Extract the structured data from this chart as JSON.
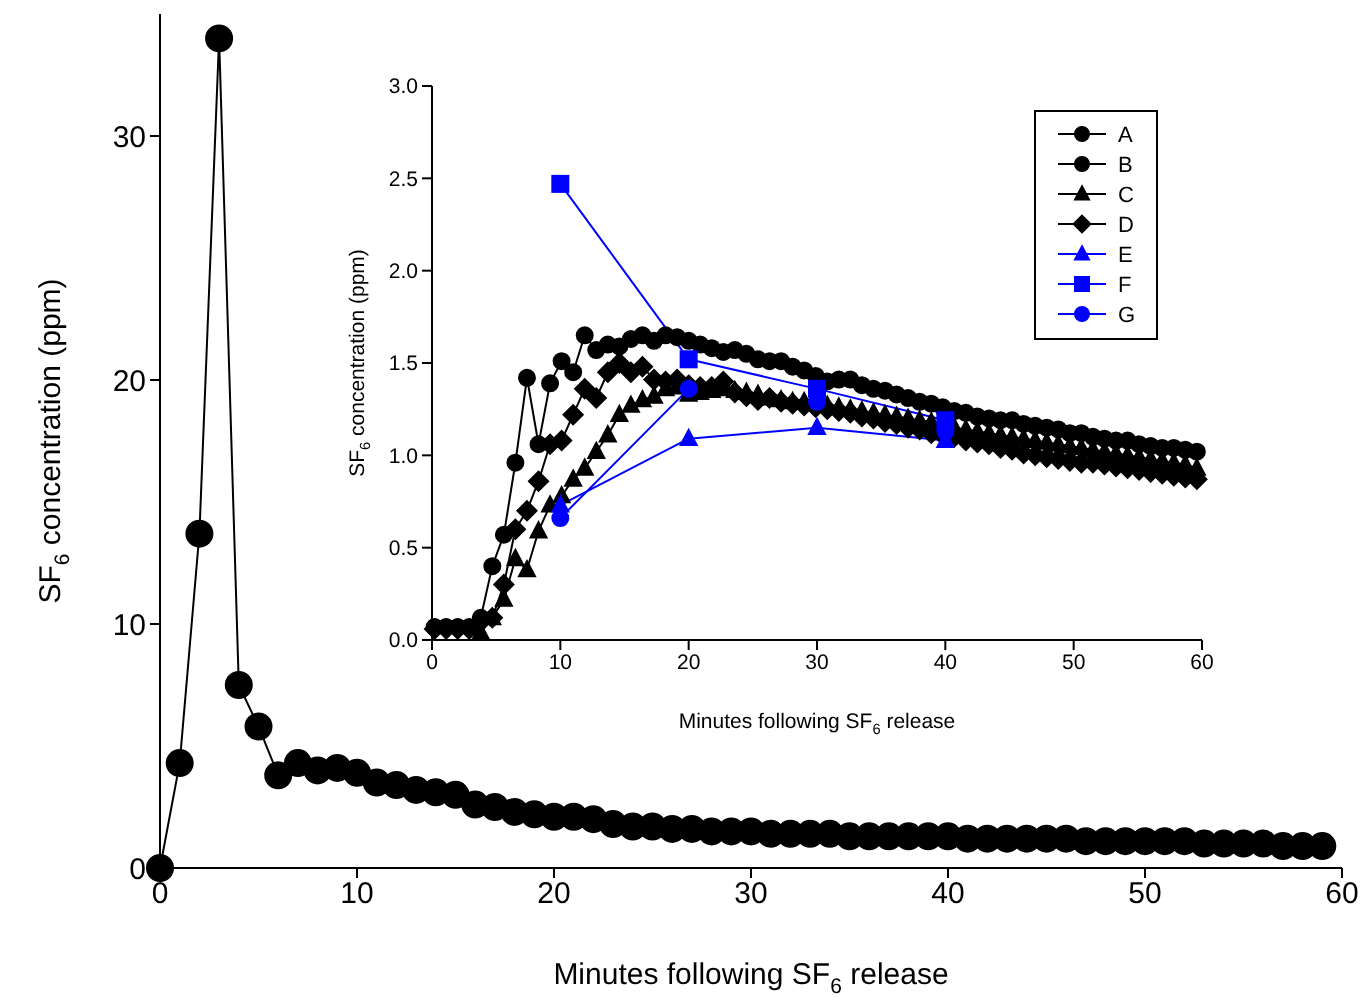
{
  "chart_data": [
    {
      "type": "line",
      "xlabel": "Minutes following SF$_{6}$ release",
      "ylabel": "SF$_{6}$ concentration (ppm)",
      "xlim": [
        0,
        60
      ],
      "xticks": [
        0,
        10,
        20,
        30,
        40,
        50,
        60
      ],
      "ylim": [
        0,
        35
      ],
      "yticks": [
        0,
        10,
        20,
        30
      ],
      "legend": "top right",
      "x": [
        0,
        1,
        2,
        3,
        4,
        5,
        6,
        7,
        8,
        9,
        10,
        11,
        12,
        13,
        14,
        15,
        16,
        17,
        18,
        19,
        20,
        21,
        22,
        23,
        24,
        25,
        26,
        27,
        28,
        29,
        30,
        31,
        32,
        33,
        34,
        35,
        36,
        37,
        38,
        39,
        40,
        41,
        42,
        43,
        44,
        45,
        46,
        47,
        48,
        49,
        50,
        51,
        52,
        53,
        54,
        55,
        56,
        57,
        58,
        59
      ],
      "series": [
        {
          "name": "A",
          "color": "#000000",
          "marker": "circle",
          "values": [
            0,
            4.3,
            13.7,
            34,
            7.5,
            5.8,
            3.8,
            4.3,
            4.0,
            4.1,
            3.9,
            3.5,
            3.4,
            3.2,
            3.1,
            3.0,
            2.6,
            2.5,
            2.3,
            2.2,
            2.1,
            2.1,
            2.0,
            1.8,
            1.7,
            1.7,
            1.6,
            1.6,
            1.5,
            1.5,
            1.5,
            1.4,
            1.4,
            1.4,
            1.4,
            1.3,
            1.3,
            1.3,
            1.3,
            1.3,
            1.3,
            1.2,
            1.2,
            1.2,
            1.2,
            1.2,
            1.2,
            1.1,
            1.1,
            1.1,
            1.1,
            1.1,
            1.1,
            1.0,
            1.0,
            1.0,
            1.0,
            0.9,
            0.9,
            0.9
          ]
        }
      ]
    },
    {
      "type": "line",
      "xlabel": "Minutes following SF$_{6}$ release",
      "ylabel": "SF$_{6}$ concentration (ppm)",
      "xlim": [
        0,
        60
      ],
      "xticks": [
        0,
        10,
        20,
        30,
        40,
        50,
        60
      ],
      "ylim": [
        0,
        3
      ],
      "yticks": [
        {
          "value": 0,
          "label": "0.0"
        },
        0.5,
        {
          "value": 1,
          "label": "1.0"
        },
        1.5,
        {
          "value": 2,
          "label": "2.0"
        },
        2.5,
        {
          "value": 3,
          "label": "3.0"
        }
      ],
      "legend": "top right",
      "x": [
        0.2,
        1.1,
        2.0,
        2.9,
        3.8,
        4.7,
        5.6,
        6.5,
        7.4,
        8.3,
        9.2,
        10.1,
        11.0,
        11.9,
        12.8,
        13.7,
        14.6,
        15.5,
        16.4,
        17.3,
        18.2,
        19.1,
        20.0,
        20.9,
        21.8,
        22.7,
        23.6,
        24.5,
        25.4,
        26.3,
        27.2,
        28.1,
        29.0,
        29.9,
        30.8,
        31.7,
        32.6,
        33.5,
        34.4,
        35.3,
        36.2,
        37.1,
        38.0,
        38.9,
        39.8,
        40.7,
        41.6,
        42.5,
        43.4,
        44.3,
        45.2,
        46.1,
        47.0,
        47.9,
        48.8,
        49.7,
        50.6,
        51.5,
        52.4,
        53.3,
        54.2,
        55.1,
        56.0,
        56.9,
        57.8,
        58.7,
        59.6
      ],
      "series": [
        {
          "name": "B",
          "color": "#000000",
          "marker": "circle",
          "values": [
            0.07,
            0.07,
            0.07,
            0.07,
            0.12,
            0.4,
            0.57,
            0.96,
            1.42,
            1.06,
            1.39,
            1.51,
            1.45,
            1.65,
            1.57,
            1.6,
            1.59,
            1.63,
            1.65,
            1.62,
            1.65,
            1.64,
            1.62,
            1.6,
            1.58,
            1.56,
            1.57,
            1.55,
            1.52,
            1.51,
            1.51,
            1.48,
            1.46,
            1.43,
            1.4,
            1.41,
            1.41,
            1.38,
            1.36,
            1.35,
            1.33,
            1.31,
            1.29,
            1.28,
            1.26,
            1.24,
            1.23,
            1.21,
            1.2,
            1.19,
            1.19,
            1.17,
            1.16,
            1.15,
            1.14,
            1.12,
            1.12,
            1.1,
            1.09,
            1.08,
            1.08,
            1.06,
            1.05,
            1.04,
            1.04,
            1.03,
            1.02
          ]
        },
        {
          "name": "C",
          "color": "#000000",
          "marker": "triangle",
          "values": [
            null,
            null,
            null,
            null,
            0.04,
            0.12,
            0.22,
            0.44,
            0.38,
            0.59,
            0.73,
            0.78,
            0.87,
            0.93,
            1.02,
            1.11,
            1.22,
            1.27,
            1.3,
            1.32,
            1.36,
            1.37,
            1.33,
            1.34,
            1.35,
            1.36,
            1.35,
            1.34,
            1.33,
            1.31,
            1.3,
            1.29,
            1.29,
            1.28,
            1.27,
            1.26,
            1.25,
            1.24,
            1.23,
            1.22,
            1.21,
            1.2,
            1.19,
            1.18,
            1.16,
            1.15,
            1.14,
            1.13,
            1.12,
            1.11,
            1.1,
            1.09,
            1.08,
            1.07,
            1.06,
            1.05,
            1.04,
            1.03,
            1.02,
            1.01,
            1.0,
            0.99,
            0.98,
            0.97,
            0.96,
            0.95,
            0.93
          ]
        },
        {
          "name": "D",
          "color": "#000000",
          "marker": "diamond",
          "values": [
            0.06,
            0.06,
            0.06,
            0.06,
            0.1,
            0.12,
            0.3,
            0.6,
            0.7,
            0.86,
            1.06,
            1.08,
            1.22,
            1.36,
            1.31,
            1.45,
            1.5,
            1.45,
            1.48,
            1.41,
            1.4,
            1.41,
            1.38,
            1.37,
            1.37,
            1.4,
            1.34,
            1.32,
            1.3,
            1.31,
            1.29,
            1.28,
            1.27,
            1.26,
            1.25,
            1.24,
            1.23,
            1.21,
            1.2,
            1.18,
            1.17,
            1.15,
            1.14,
            1.12,
            1.11,
            1.1,
            1.08,
            1.07,
            1.06,
            1.04,
            1.03,
            1.01,
            1.0,
            0.99,
            0.98,
            0.97,
            0.96,
            0.96,
            0.95,
            0.94,
            0.93,
            0.92,
            0.91,
            0.9,
            0.89,
            0.88,
            0.87
          ]
        },
        {
          "name": "E",
          "color": "#0000ff",
          "marker": "triangle",
          "x": [
            10,
            20,
            30,
            40
          ],
          "values": [
            0.73,
            1.09,
            1.15,
            1.08
          ]
        },
        {
          "name": "F",
          "color": "#0000ff",
          "marker": "square",
          "x": [
            10,
            20,
            30,
            40
          ],
          "values": [
            2.47,
            1.52,
            1.36,
            1.19
          ]
        },
        {
          "name": "G",
          "color": "#0000ff",
          "marker": "circle",
          "x": [
            10,
            20,
            30,
            40
          ],
          "values": [
            0.66,
            1.36,
            1.29,
            1.13
          ]
        }
      ]
    }
  ]
}
